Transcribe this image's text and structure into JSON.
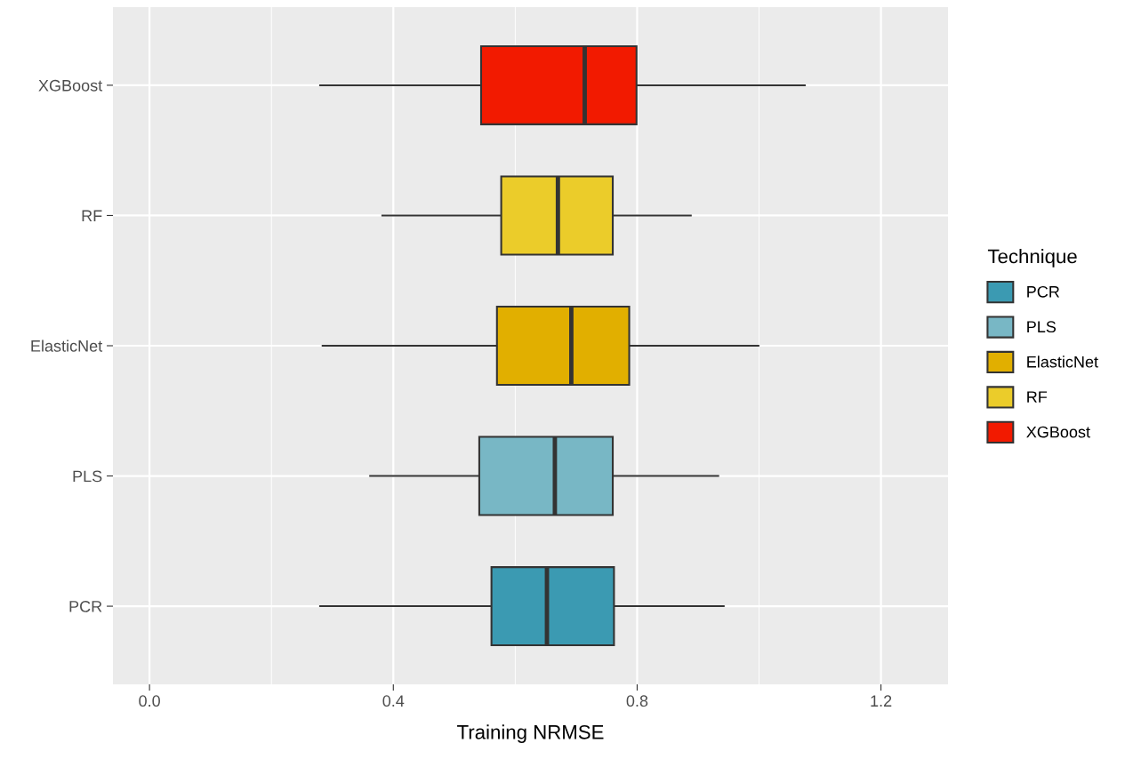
{
  "chart_data": {
    "type": "box",
    "orientation": "horizontal",
    "xlabel": "Training NRMSE",
    "legend_title": "Technique",
    "legend": "right",
    "grid": true,
    "categories": [
      "XGBoost",
      "RF",
      "ElasticNet",
      "PLS",
      "PCR"
    ],
    "series": [
      {
        "name": "PCR",
        "color": "#3b9ab2",
        "boxes": [
          null,
          null,
          null,
          null,
          {
            "low": 0.28,
            "q1": 0.561,
            "median": 0.652,
            "q3": 0.762,
            "high": 0.942
          }
        ]
      },
      {
        "name": "PLS",
        "color": "#78b7c5",
        "boxes": [
          null,
          null,
          null,
          {
            "low": 0.362,
            "q1": 0.541,
            "median": 0.665,
            "q3": 0.76,
            "high": 0.933
          },
          null
        ]
      },
      {
        "name": "ElasticNet",
        "color": "#e1af00",
        "boxes": [
          null,
          null,
          {
            "low": 0.284,
            "q1": 0.57,
            "median": 0.692,
            "q3": 0.787,
            "high": 0.999
          },
          null,
          null
        ]
      },
      {
        "name": "RF",
        "color": "#ebcc2a",
        "boxes": [
          null,
          {
            "low": 0.382,
            "q1": 0.577,
            "median": 0.67,
            "q3": 0.76,
            "high": 0.888
          },
          null,
          null,
          null
        ]
      },
      {
        "name": "XGBoost",
        "color": "#f21a00",
        "boxes": [
          {
            "low": 0.28,
            "q1": 0.544,
            "median": 0.714,
            "q3": 0.799,
            "high": 1.075
          },
          null,
          null,
          null,
          null
        ]
      }
    ],
    "xlim": [
      -0.06,
      1.31
    ],
    "xticks": [
      {
        "value": 0.0,
        "label": "0.0"
      },
      {
        "value": 0.2,
        "label": null
      },
      {
        "value": 0.4,
        "label": "0.4"
      },
      {
        "value": 0.6,
        "label": null
      },
      {
        "value": 0.8,
        "label": "0.8"
      },
      {
        "value": 1.0,
        "label": null
      },
      {
        "value": 1.2,
        "label": "1.2"
      }
    ]
  }
}
